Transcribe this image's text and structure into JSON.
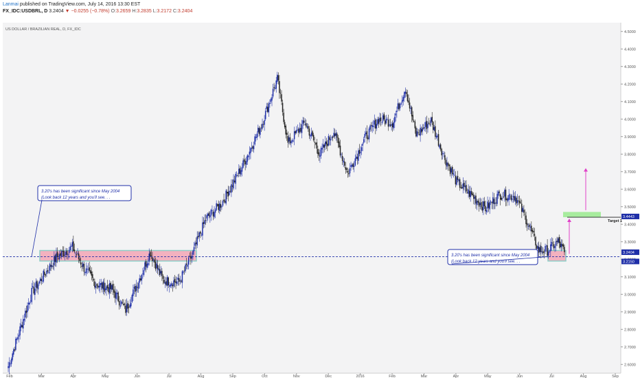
{
  "header": {
    "author": "Lanmai",
    "published": "published on TradingView.com, July 14, 2016 13:30 EST",
    "symbol": "FX_IDC:USDBRL, D",
    "last": "3.2404",
    "change": "−0.0255 (−0.78%)",
    "open_label": "O:",
    "open": "3.2659",
    "high_label": "H:",
    "high": "3.2835",
    "low_label": "L:",
    "low": "3.2172",
    "close_label": "C:",
    "close": "3.2404"
  },
  "chart_title": "US DOLLAR / BRAZILIAN REAL, D, FX_IDC",
  "colors": {
    "bull": "#1f2fa8",
    "bear": "#222222",
    "support_fill": "#f4a6b6",
    "support_border": "#7fc8c0",
    "target_fill": "#a7ec9e",
    "arrow": "#e040c8",
    "level_line": "#1f2fa8",
    "annotation": "#1f2fa8"
  },
  "chart_data": {
    "type": "candlestick",
    "title": "US DOLLAR / BRAZILIAN REAL, D, FX_IDC",
    "ylim": [
      2.55,
      4.55
    ],
    "y_ticks": [
      "4.5000",
      "4.4000",
      "4.3000",
      "4.2000",
      "4.1000",
      "4.0000",
      "3.9000",
      "3.8000",
      "3.7000",
      "3.6000",
      "3.5000",
      "3.4000",
      "3.3000",
      "3.2000",
      "3.1000",
      "3.0000",
      "2.9000",
      "2.8000",
      "2.7000",
      "2.6000"
    ],
    "x_ticks": [
      "Feb",
      "Mar",
      "Apr",
      "May",
      "Jun",
      "Jul",
      "Aug",
      "Sep",
      "Oct",
      "Nov",
      "Dec",
      "2016",
      "Feb",
      "Mar",
      "Apr",
      "May",
      "Jun",
      "Jul",
      "Aug",
      "Sep"
    ],
    "keypoints": [
      [
        0,
        2.59
      ],
      [
        22,
        3.01
      ],
      [
        45,
        3.21
      ],
      [
        60,
        3.27
      ],
      [
        72,
        3.14
      ],
      [
        82,
        3.06
      ],
      [
        97,
        3.03
      ],
      [
        110,
        2.91
      ],
      [
        125,
        3.12
      ],
      [
        133,
        3.24
      ],
      [
        145,
        3.08
      ],
      [
        160,
        3.07
      ],
      [
        172,
        3.22
      ],
      [
        185,
        3.43
      ],
      [
        200,
        3.52
      ],
      [
        220,
        3.74
      ],
      [
        238,
        3.98
      ],
      [
        252,
        4.23
      ],
      [
        262,
        3.86
      ],
      [
        278,
        3.98
      ],
      [
        292,
        3.8
      ],
      [
        305,
        3.93
      ],
      [
        318,
        3.69
      ],
      [
        335,
        3.9
      ],
      [
        347,
        4.0
      ],
      [
        360,
        3.98
      ],
      [
        372,
        4.18
      ],
      [
        382,
        3.91
      ],
      [
        396,
        3.99
      ],
      [
        408,
        3.79
      ],
      [
        420,
        3.64
      ],
      [
        435,
        3.56
      ],
      [
        447,
        3.49
      ],
      [
        460,
        3.57
      ],
      [
        475,
        3.56
      ],
      [
        485,
        3.43
      ],
      [
        497,
        3.25
      ],
      [
        505,
        3.25
      ],
      [
        515,
        3.3
      ],
      [
        521,
        3.24
      ]
    ],
    "last_price": 3.2404,
    "current_label": "3.2404",
    "level_label": "3.2150",
    "level": 3.215,
    "target_label": "3.4443",
    "target_value": 3.4443,
    "target_name": "Target 1",
    "support_zone": [
      3.19,
      3.25
    ],
    "target_zone": [
      3.44,
      3.47
    ],
    "annotation_lines": [
      "3.20's has been significant since May 2004",
      "(Look back 12 years and you'll see. . ."
    ]
  }
}
